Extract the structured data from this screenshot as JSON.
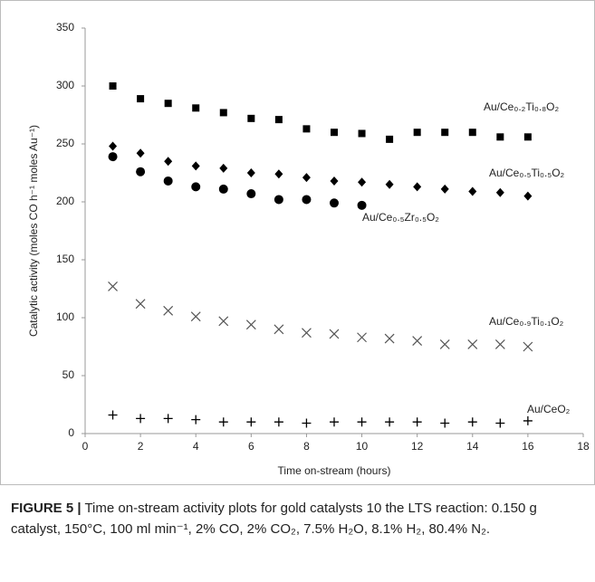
{
  "chart_data": {
    "type": "scatter",
    "xlabel": "Time on-stream (hours)",
    "ylabel": "Catalytic activity (moles CO h⁻¹ moles Au⁻¹)",
    "xlim": [
      0,
      18
    ],
    "xticks": [
      0,
      2,
      4,
      6,
      8,
      10,
      12,
      14,
      16,
      18
    ],
    "ylim": [
      0,
      350
    ],
    "yticks": [
      0,
      50,
      100,
      150,
      200,
      250,
      300,
      350
    ],
    "grid": false,
    "x": [
      1,
      2,
      3,
      4,
      5,
      6,
      7,
      8,
      9,
      10,
      11,
      12,
      13,
      14,
      15,
      16
    ],
    "series": [
      {
        "name": "Au/Ce₀.₂Ti₀.₈O₂",
        "color": "#000000",
        "marker": "square",
        "values": [
          300,
          289,
          285,
          281,
          277,
          272,
          271,
          263,
          260,
          259,
          254,
          260,
          260,
          260,
          256,
          256
        ]
      },
      {
        "name": "Au/Ce₀.₅Ti₀.₅O₂",
        "color": "#000000",
        "marker": "diamond",
        "values": [
          248,
          242,
          235,
          231,
          229,
          225,
          224,
          221,
          218,
          217,
          215,
          213,
          211,
          209,
          208,
          205
        ]
      },
      {
        "name": "Au/Ce₀.₅Zr₀.₅O₂",
        "color": "#000000",
        "marker": "circle",
        "values": [
          239,
          226,
          218,
          213,
          211,
          207,
          202,
          202,
          199,
          197,
          null,
          null,
          null,
          null,
          null,
          null
        ]
      },
      {
        "name": "Au/Ce₀.₉Ti₀.₁O₂",
        "color": "#555555",
        "marker": "x",
        "values": [
          127,
          112,
          106,
          101,
          97,
          94,
          90,
          87,
          86,
          83,
          82,
          80,
          77,
          77,
          77,
          75
        ]
      },
      {
        "name": "Au/CeO₂",
        "color": "#000000",
        "marker": "plus",
        "values": [
          16,
          13,
          13,
          12,
          10,
          10,
          10,
          9,
          10,
          10,
          10,
          10,
          9,
          10,
          9,
          11
        ]
      }
    ]
  },
  "caption": {
    "label": "FIGURE 5 |",
    "text": "Time on-stream activity plots for gold catalysts 10 the LTS reaction: 0.150 g catalyst, 150°C, 100 ml min⁻¹, 2% CO, 2% CO₂, 7.5% H₂O, 8.1% H₂, 80.4% N₂."
  }
}
